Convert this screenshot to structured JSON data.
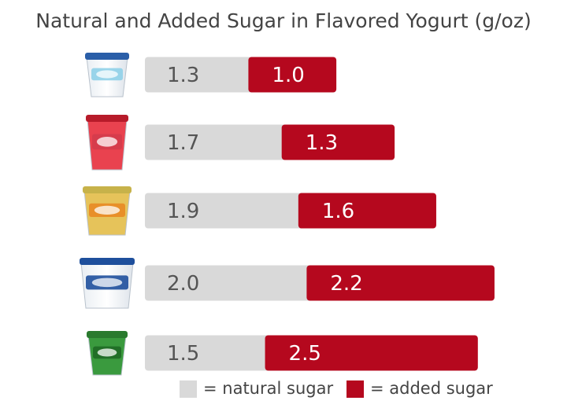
{
  "colors": {
    "natural": "#d9d9d9",
    "added": "#b5081e",
    "natural_text": "#555555",
    "added_text": "#ffffff"
  },
  "chart_data": {
    "type": "bar",
    "stacked": true,
    "orientation": "horizontal",
    "title": "Natural and Added Sugar in Flavored Yogurt (g/oz)",
    "categories": [
      "",
      "",
      "",
      "",
      ""
    ],
    "category_icons": [
      "yogurt-cup-icon",
      "yoplait-cup-icon",
      "stonyfield-cup-icon",
      "dannon-cup-icon",
      "activia-cup-icon"
    ],
    "series": [
      {
        "name": "natural sugar",
        "values": [
          1.3,
          1.7,
          1.9,
          2.0,
          1.5
        ],
        "labels": [
          "1.3",
          "1.7",
          "1.9",
          "2.0",
          "1.5"
        ]
      },
      {
        "name": "added sugar",
        "values": [
          1.0,
          1.3,
          1.6,
          2.2,
          2.5
        ],
        "labels": [
          "1.0",
          "1.3",
          "1.6",
          "2.2",
          "2.5"
        ]
      }
    ],
    "grid": false,
    "legend": "bottom"
  },
  "legend": {
    "natural_label": "= natural sugar",
    "added_label": "= added sugar"
  }
}
